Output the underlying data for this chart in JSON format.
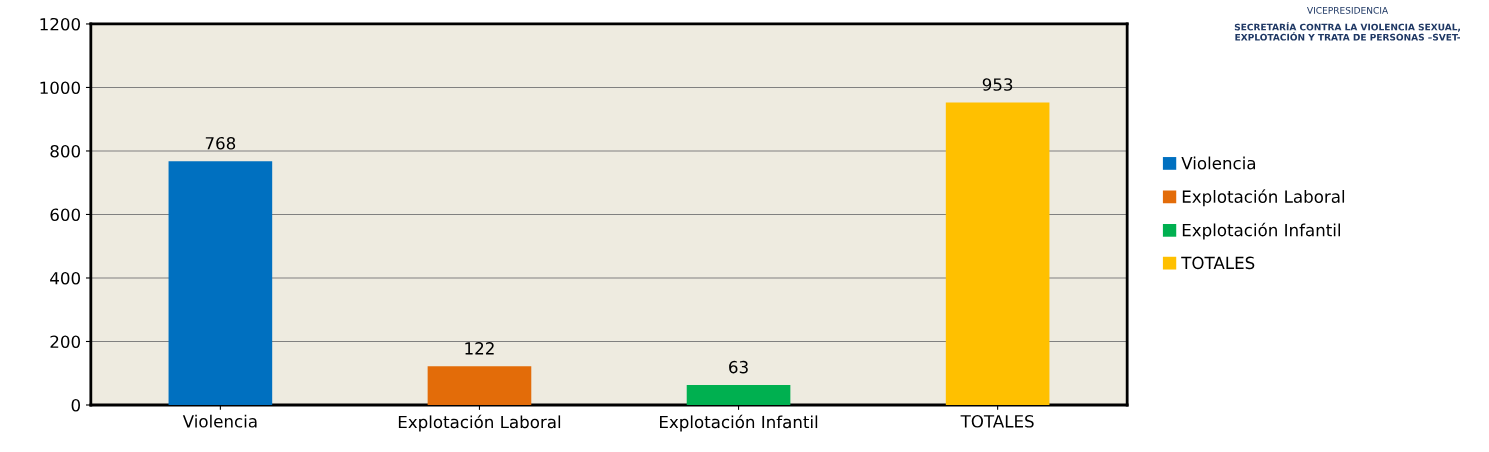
{
  "chart_data": {
    "type": "bar",
    "categories": [
      "Violencia",
      "Explotación Laboral",
      "Explotación Infantil",
      "TOTALES"
    ],
    "series": [
      {
        "name": "Violencia",
        "color": "#0070c0",
        "values": [
          768,
          null,
          null,
          null
        ]
      },
      {
        "name": "Explotación Laboral",
        "color": "#e36c09",
        "values": [
          null,
          122,
          null,
          null
        ]
      },
      {
        "name": "Explotación Infantil",
        "color": "#00b050",
        "values": [
          null,
          null,
          63,
          null
        ]
      },
      {
        "name": "TOTALES",
        "color": "#ffc000",
        "values": [
          null,
          null,
          null,
          953
        ]
      }
    ],
    "ylim": [
      0,
      1200
    ],
    "yticks": [
      0,
      200,
      400,
      600,
      800,
      1000,
      1200
    ],
    "grid": "y",
    "legend": "right",
    "data_labels": true,
    "annotations": [
      "VICEPRESIDENCIA",
      "SECRETARÍA CONTRA LA VIOLENCIA SEXUAL, EXPLOTACIÓN Y TRATA DE PERSONAS –SVET-"
    ]
  }
}
